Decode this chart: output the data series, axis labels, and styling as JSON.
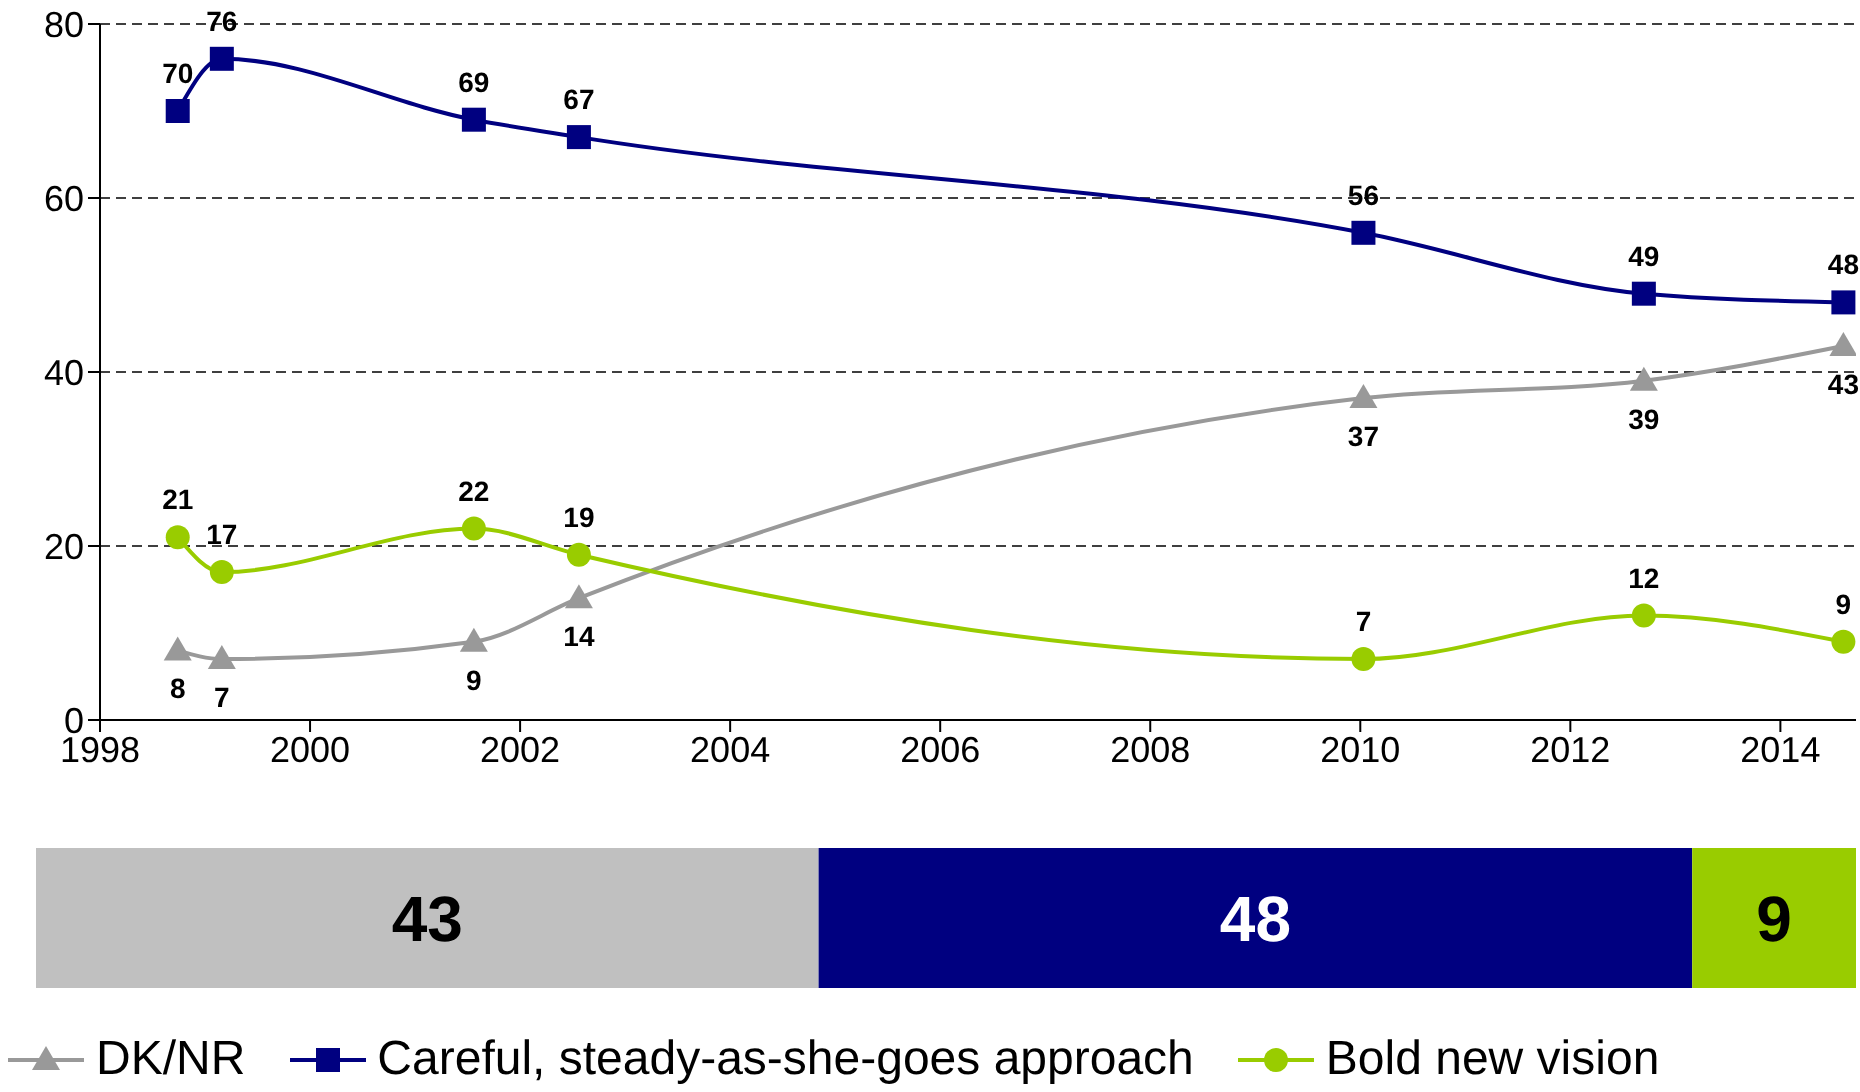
{
  "chart_data": [
    {
      "type": "line",
      "x": [
        1998.74,
        1999.16,
        2001.56,
        2002.56,
        2010.03,
        2012.7,
        2014.6
      ],
      "xlim": [
        1998,
        2014.72
      ],
      "xticks": [
        1998,
        2000,
        2002,
        2004,
        2006,
        2008,
        2010,
        2012,
        2014
      ],
      "ylim": [
        0,
        80
      ],
      "yticks": [
        0,
        20,
        40,
        60,
        80
      ],
      "grid": "y",
      "legend": "bottom",
      "data_labels": true,
      "series": [
        {
          "name": "DK/NR",
          "color": "#999999",
          "marker": "triangle",
          "values": [
            8,
            7,
            9,
            14,
            37,
            39,
            43
          ]
        },
        {
          "name": "Careful, steady-as-she-goes approach",
          "color": "#000080",
          "marker": "square",
          "values": [
            70,
            76,
            69,
            67,
            56,
            49,
            48
          ]
        },
        {
          "name": "Bold new vision",
          "color": "#99cc00",
          "marker": "circle",
          "values": [
            21,
            17,
            22,
            19,
            7,
            12,
            9
          ]
        }
      ]
    },
    {
      "type": "bar",
      "orientation": "horizontal",
      "stacked": true,
      "categories": [
        null
      ],
      "data_labels": true,
      "series": [
        {
          "color": "#c0c0c0",
          "values": [
            43
          ]
        },
        {
          "color": "#000080",
          "values": [
            48
          ]
        },
        {
          "color": "#99cc00",
          "values": [
            9
          ]
        }
      ]
    }
  ]
}
